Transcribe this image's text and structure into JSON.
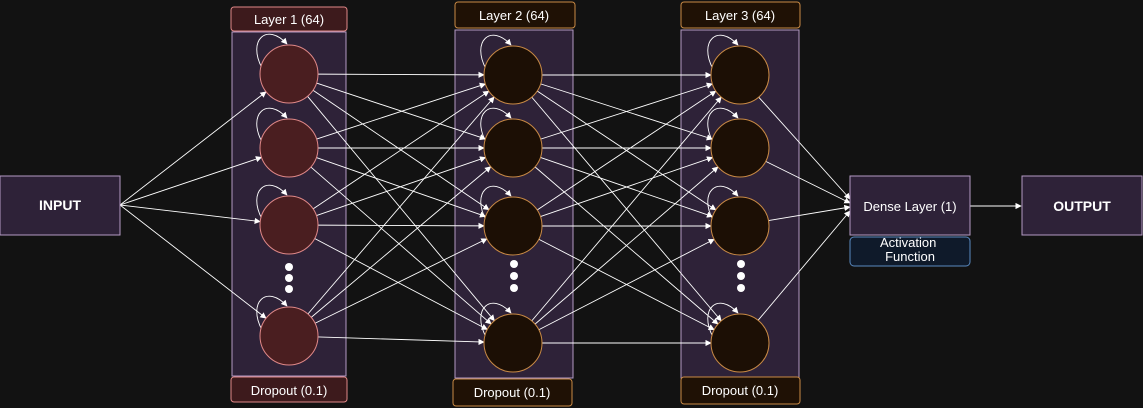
{
  "input_label": "INPUT",
  "output_label": "OUTPUT",
  "layers": [
    {
      "title": "Layer 1 (64)",
      "dropout": "Dropout (0.1)"
    },
    {
      "title": "Layer 2 (64)",
      "dropout": "Dropout (0.1)"
    },
    {
      "title": "Layer 3 (64)",
      "dropout": "Dropout (0.1)"
    }
  ],
  "dense_label": "Dense Layer (1)",
  "activation_label": "Activation Function",
  "colors": {
    "background": "#121212",
    "io_box_fill": "#2e2238",
    "io_box_stroke": "#b49ac4",
    "layer_panel_fill": "#2e2238",
    "layer_panel_stroke": "#b49ac4",
    "layer1_neuron_fill": "#4a1e20",
    "layer1_neuron_stroke": "#e08888",
    "layer1_label_fill": "#3d1a1c",
    "layer1_label_stroke": "#e08888",
    "deep_neuron_fill": "#1c0f05",
    "deep_neuron_stroke": "#c98a45",
    "deep_label_fill": "#1f1105",
    "deep_label_stroke": "#c98a45",
    "activation_fill": "#0f1a2a",
    "activation_stroke": "#5a8ac0",
    "edge": "#ffffff"
  }
}
